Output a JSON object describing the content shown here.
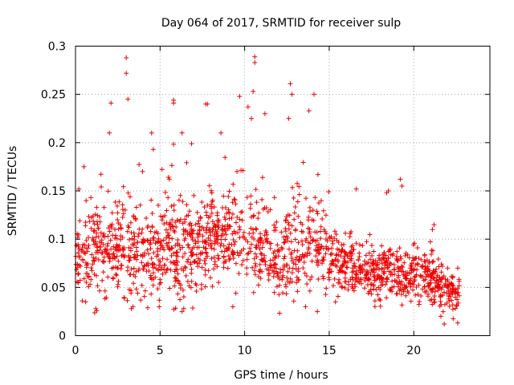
{
  "chart_data": {
    "type": "scatter",
    "title": "Day 064 of 2017, SRMTID for receiver sulp",
    "xlabel": "GPS time / hours",
    "ylabel": "SRMTID / TECUs",
    "xlim": [
      0,
      24.5
    ],
    "ylim": [
      0,
      0.3
    ],
    "grid": true,
    "marker": "+",
    "color": "#ee0000",
    "xticks": [
      0,
      5,
      10,
      15,
      20
    ],
    "xtick_labels": [
      "0",
      "5",
      "10",
      "15",
      "20"
    ],
    "yticks": [
      0,
      0.05,
      0.1,
      0.15,
      0.2,
      0.25,
      0.3
    ],
    "ytick_labels": [
      "0",
      "0.05",
      "0.1",
      "0.15",
      "0.2",
      "0.25",
      "0.3"
    ],
    "trend": {
      "hours": [
        0,
        1,
        2,
        3,
        4,
        5,
        6,
        7,
        8,
        9,
        10,
        11,
        12,
        13,
        14,
        15,
        16,
        17,
        18,
        19,
        20,
        21,
        22,
        22.7
      ],
      "typical_srmtid": [
        0.085,
        0.085,
        0.095,
        0.09,
        0.085,
        0.08,
        0.09,
        0.09,
        0.1,
        0.1,
        0.105,
        0.095,
        0.075,
        0.095,
        0.1,
        0.08,
        0.075,
        0.07,
        0.065,
        0.065,
        0.065,
        0.06,
        0.045,
        0.045
      ],
      "typical_spread": [
        0.03,
        0.03,
        0.035,
        0.035,
        0.03,
        0.03,
        0.035,
        0.035,
        0.035,
        0.035,
        0.04,
        0.035,
        0.03,
        0.04,
        0.035,
        0.025,
        0.022,
        0.02,
        0.02,
        0.02,
        0.02,
        0.02,
        0.015,
        0.015
      ]
    },
    "notable_points": [
      {
        "x": 3.0,
        "y": 0.288
      },
      {
        "x": 3.0,
        "y": 0.272
      },
      {
        "x": 3.1,
        "y": 0.245
      },
      {
        "x": 10.6,
        "y": 0.289
      },
      {
        "x": 10.6,
        "y": 0.283
      },
      {
        "x": 10.5,
        "y": 0.253
      },
      {
        "x": 12.7,
        "y": 0.261
      },
      {
        "x": 12.8,
        "y": 0.25
      },
      {
        "x": 14.1,
        "y": 0.25
      },
      {
        "x": 5.8,
        "y": 0.244
      },
      {
        "x": 5.8,
        "y": 0.241
      },
      {
        "x": 7.7,
        "y": 0.24
      },
      {
        "x": 7.8,
        "y": 0.24
      },
      {
        "x": 2.1,
        "y": 0.241
      },
      {
        "x": 9.7,
        "y": 0.248
      },
      {
        "x": 10.2,
        "y": 0.237
      },
      {
        "x": 10.4,
        "y": 0.225
      },
      {
        "x": 13.8,
        "y": 0.233
      },
      {
        "x": 12.6,
        "y": 0.225
      },
      {
        "x": 11.2,
        "y": 0.23
      },
      {
        "x": 8.6,
        "y": 0.21
      },
      {
        "x": 4.5,
        "y": 0.21
      },
      {
        "x": 4.6,
        "y": 0.193
      },
      {
        "x": 6.3,
        "y": 0.21
      },
      {
        "x": 2.0,
        "y": 0.21
      },
      {
        "x": 18.5,
        "y": 0.15
      },
      {
        "x": 18.4,
        "y": 0.148
      },
      {
        "x": 19.2,
        "y": 0.162
      },
      {
        "x": 19.3,
        "y": 0.155
      },
      {
        "x": 16.6,
        "y": 0.152
      },
      {
        "x": 21.2,
        "y": 0.115
      },
      {
        "x": 21.1,
        "y": 0.11
      },
      {
        "x": 22.0,
        "y": 0.07
      },
      {
        "x": 22.6,
        "y": 0.07
      },
      {
        "x": 21.8,
        "y": 0.012
      },
      {
        "x": 21.6,
        "y": 0.02
      },
      {
        "x": 9.3,
        "y": 0.03
      },
      {
        "x": 6.3,
        "y": 0.025
      },
      {
        "x": 6.4,
        "y": 0.028
      },
      {
        "x": 3.3,
        "y": 0.028
      },
      {
        "x": 3.4,
        "y": 0.03
      },
      {
        "x": 1.2,
        "y": 0.028
      },
      {
        "x": 14.3,
        "y": 0.025
      },
      {
        "x": 13.6,
        "y": 0.03
      },
      {
        "x": 0.4,
        "y": 0.036
      },
      {
        "x": 0.6,
        "y": 0.035
      },
      {
        "x": 0.2,
        "y": 0.152
      },
      {
        "x": 0.5,
        "y": 0.175
      }
    ]
  }
}
